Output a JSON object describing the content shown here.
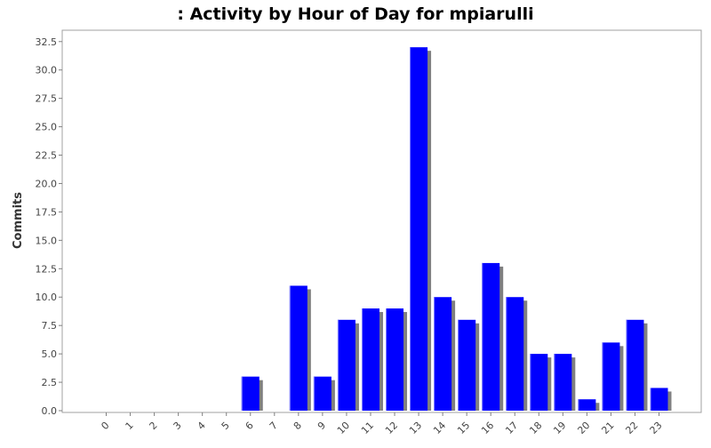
{
  "chart_data": {
    "type": "bar",
    "title": ": Activity by Hour of Day for mpiarulli",
    "xlabel": "",
    "ylabel": "Commits",
    "categories": [
      "0",
      "1",
      "2",
      "3",
      "4",
      "5",
      "6",
      "7",
      "8",
      "9",
      "10",
      "11",
      "12",
      "13",
      "14",
      "15",
      "16",
      "17",
      "18",
      "19",
      "20",
      "21",
      "22",
      "23"
    ],
    "values": [
      0,
      0,
      0,
      0,
      0,
      0,
      3,
      0,
      11,
      3,
      8,
      9,
      9,
      32,
      10,
      8,
      13,
      10,
      5,
      5,
      1,
      6,
      8,
      2
    ],
    "ylim": [
      0,
      33.5
    ],
    "yticks": [
      "0.0",
      "2.5",
      "5.0",
      "7.5",
      "10.0",
      "12.5",
      "15.0",
      "17.5",
      "20.0",
      "22.5",
      "25.0",
      "27.5",
      "30.0",
      "32.5"
    ],
    "grid": false,
    "legend": "none",
    "colors": {
      "bar": "#0000ff",
      "bar_shadow": "#808080",
      "bar_highlight": "#8080ff",
      "axis": "#808080",
      "text": "#444444",
      "title": "#000000"
    }
  }
}
